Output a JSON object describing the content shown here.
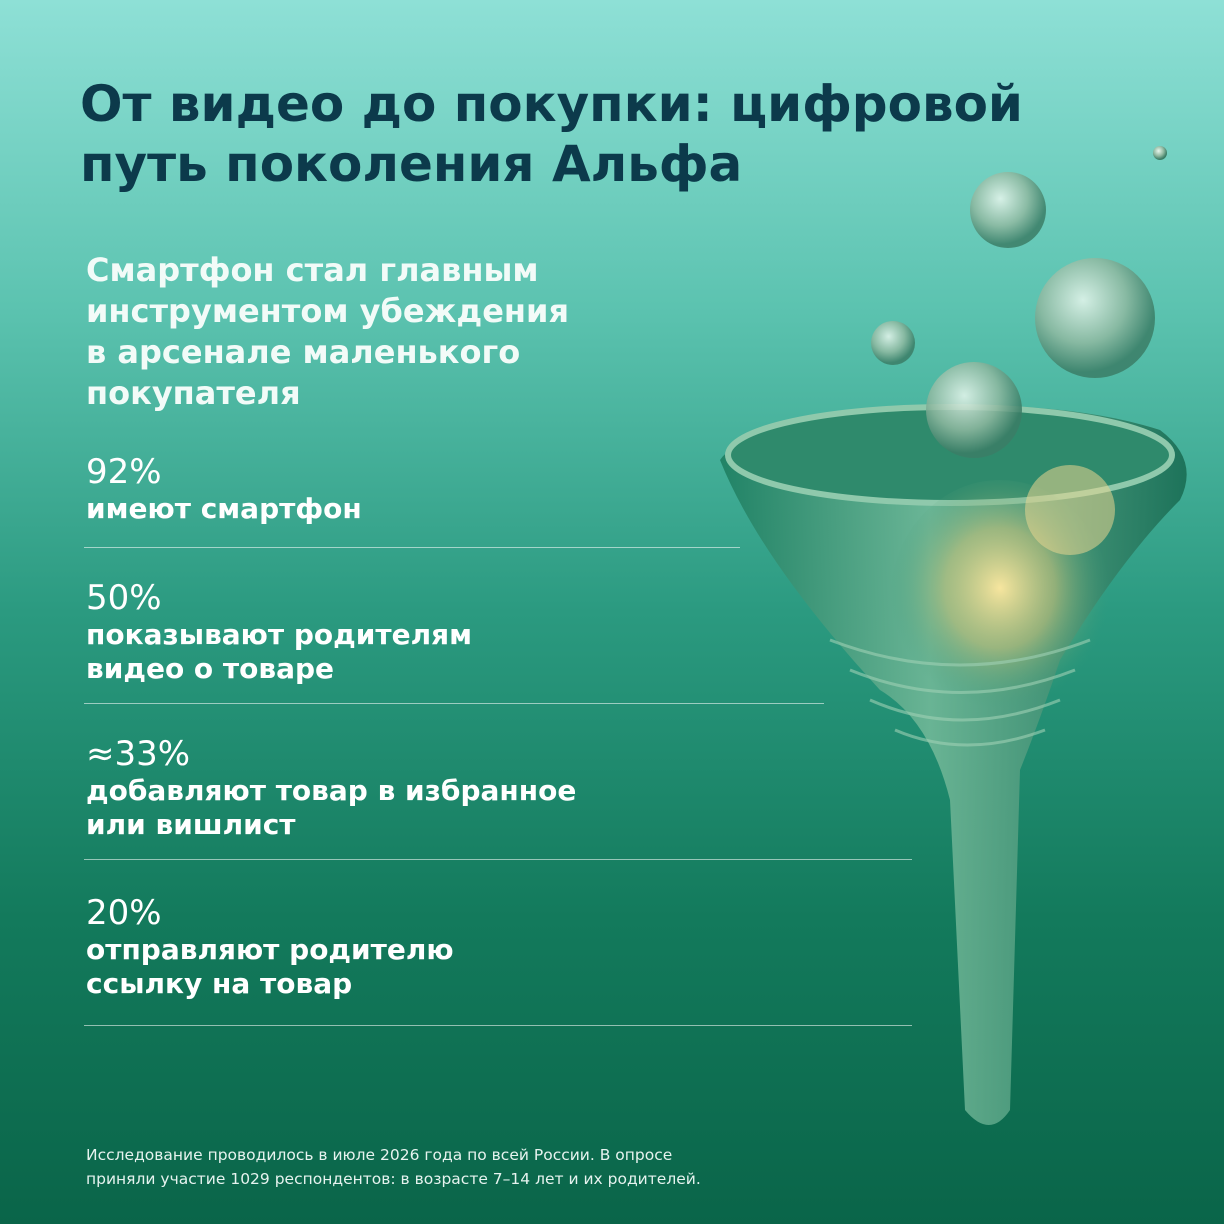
{
  "header": {
    "title_lines": [
      "От видео до покупки: цифровой",
      "путь поколения Альфа"
    ]
  },
  "subtitle_lines": [
    "Смартфон стал главным",
    "инструментом убеждения",
    "в арсенале маленького",
    "покупателя"
  ],
  "stats": [
    {
      "value": "92%",
      "label_lines": [
        "имеют смартфон"
      ]
    },
    {
      "value": "50%",
      "label_lines": [
        "показывают родителям",
        "видео о товаре"
      ]
    },
    {
      "value": "≈33%",
      "label_lines": [
        "добавляют товар в избранное",
        "или вишлист"
      ]
    },
    {
      "value": "20%",
      "label_lines": [
        "отправляют родителю",
        "ссылку на товар"
      ]
    }
  ],
  "footnote_lines": [
    "Исследование проводилось в июле 2026 года по всей России. В опросе",
    "приняли участие 1029 респондентов: в возрасте 7–14 лет и их родителей."
  ]
}
